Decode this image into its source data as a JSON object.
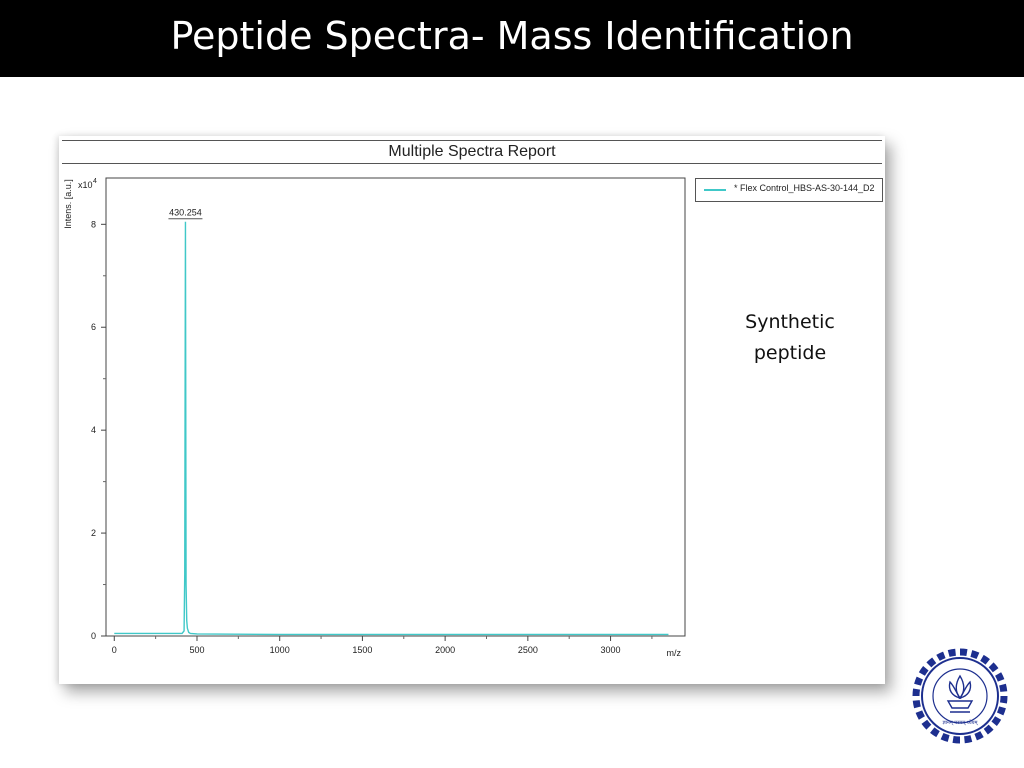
{
  "slide": {
    "title": "Peptide Spectra- Mass Identification",
    "annotation_line1": "Synthetic",
    "annotation_line2": "peptide"
  },
  "logo": {
    "icon": "iit-bombay-logo-icon",
    "text": "INDIAN INSTITUTE OF TECHNOLOGY BOMBAY",
    "motto": "ज्ञानम् परमम् ध्येयम्"
  },
  "chart_data": {
    "type": "line",
    "title": "Multiple Spectra Report",
    "xlabel": "m/z",
    "ylabel": "Intens. [a.u.]",
    "y_multiplier": "x10",
    "y_exponent": "4",
    "xlim": [
      -50,
      3450
    ],
    "ylim": [
      0,
      8.9
    ],
    "x_ticks": [
      0,
      500,
      1000,
      1500,
      2000,
      2500,
      3000
    ],
    "y_ticks": [
      0,
      2,
      4,
      6,
      8
    ],
    "grid": false,
    "legend_position": "right",
    "series": [
      {
        "name": "* Flex Control_HBS-AS-30-144_D2",
        "color": "#40c8c8",
        "x": [
          0,
          410,
          422,
          426,
          430.254,
          434,
          438,
          442,
          450,
          460,
          500,
          1000,
          1500,
          2000,
          2500,
          3000,
          3350
        ],
        "y": [
          0.05,
          0.05,
          0.1,
          1.2,
          8.05,
          1.0,
          0.3,
          0.15,
          0.07,
          0.05,
          0.04,
          0.03,
          0.03,
          0.03,
          0.03,
          0.03,
          0.03
        ]
      }
    ],
    "peak_labels": [
      {
        "x": 430.254,
        "y": 8.05,
        "label": "430.254"
      }
    ]
  }
}
